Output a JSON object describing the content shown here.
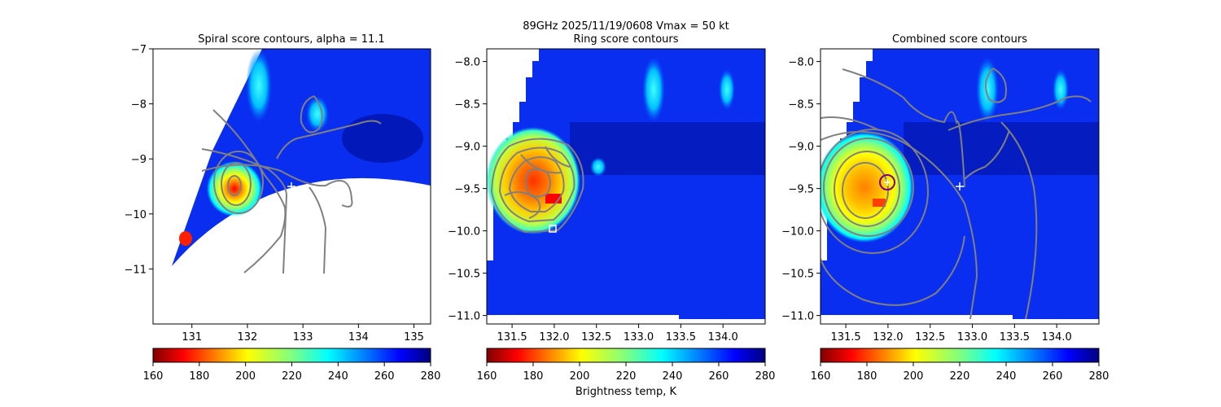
{
  "figure": {
    "suptitle": "89GHz  2025/11/19/0608    Vmax = 50 kt",
    "colorbar_label": "Brightness temp, K"
  },
  "colors": {
    "jet_reversed": [
      "#800000",
      "#ff0000",
      "#ff8000",
      "#ffff00",
      "#80ff80",
      "#00ffff",
      "#0080ff",
      "#0000ff",
      "#000080"
    ],
    "contour": "#808080",
    "marker_center": "#ffffff",
    "ring_best_circle": "#800080"
  },
  "chart_data": [
    {
      "type": "heatmap",
      "panel": "left",
      "title": "Spiral score contours, alpha = 11.1",
      "xlim": [
        130.3,
        135.3
      ],
      "ylim": [
        -12.0,
        -7.0
      ],
      "xticks": [
        131,
        132,
        133,
        134,
        135
      ],
      "yticks": [
        -7,
        -8,
        -9,
        -10,
        -11
      ],
      "colorbar": {
        "range": [
          160,
          280
        ],
        "ticks": [
          160,
          180,
          200,
          220,
          240,
          260,
          280
        ],
        "colormap": "jet_reversed"
      },
      "warm_core": {
        "lon": 131.7,
        "lat": -9.6,
        "min_tb": 185
      },
      "markers": [
        {
          "symbol": "+",
          "lon": 132.8,
          "lat": -9.5
        }
      ]
    },
    {
      "type": "heatmap",
      "panel": "center",
      "title": "Ring score contours",
      "xlim": [
        131.2,
        134.5
      ],
      "ylim": [
        -11.1,
        -7.85
      ],
      "xticks": [
        131.5,
        132.0,
        132.5,
        133.0,
        133.5,
        134.0
      ],
      "yticks": [
        -8.0,
        -8.5,
        -9.0,
        -9.5,
        -10.0,
        -10.5,
        -11.0
      ],
      "colorbar": {
        "range": [
          160,
          280
        ],
        "ticks": [
          160,
          180,
          200,
          220,
          240,
          260,
          280
        ],
        "colormap": "jet_reversed"
      },
      "warm_core": {
        "lon": 131.7,
        "lat": -9.6,
        "min_tb": 180
      },
      "markers": [
        {
          "symbol": "square",
          "lon": 131.95,
          "lat": -10.0
        }
      ]
    },
    {
      "type": "heatmap",
      "panel": "right",
      "title": "Combined score contours",
      "xlim": [
        131.2,
        134.5
      ],
      "ylim": [
        -11.1,
        -7.85
      ],
      "xticks": [
        131.5,
        132.0,
        132.5,
        133.0,
        133.5,
        134.0
      ],
      "yticks": [
        -8.0,
        -8.5,
        -9.0,
        -9.5,
        -10.0,
        -10.5,
        -11.0
      ],
      "colorbar": {
        "range": [
          160,
          280
        ],
        "ticks": [
          160,
          180,
          200,
          220,
          240,
          260,
          280
        ],
        "colormap": "jet_reversed"
      },
      "warm_core": {
        "lon": 131.7,
        "lat": -9.6,
        "min_tb": 190
      },
      "markers": [
        {
          "symbol": "+",
          "lon": 132.8,
          "lat": -9.48
        },
        {
          "symbol": "circle",
          "lon": 131.92,
          "lat": -9.42
        }
      ]
    }
  ]
}
